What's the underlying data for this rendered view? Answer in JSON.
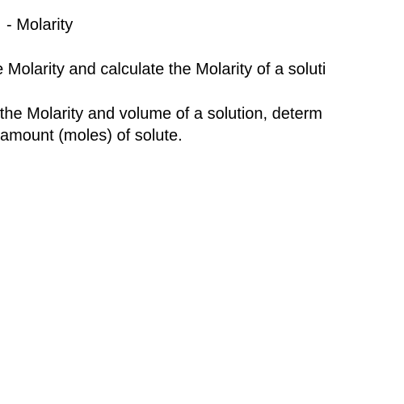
{
  "document": {
    "title": " - Molarity",
    "point1": "fine Molarity and calculate the Molarity of a soluti",
    "point2a": "en the Molarity and volume of a solution, determ",
    "point2b": " amount (moles) of solute.",
    "text_color": "#000000",
    "background_color": "#ffffff",
    "font_size_pt": 15,
    "font_family": "Arial"
  }
}
